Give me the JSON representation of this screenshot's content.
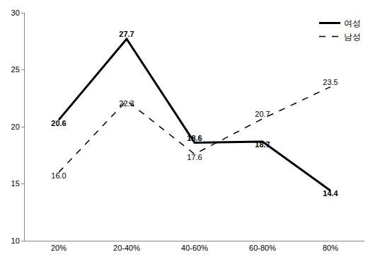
{
  "chart_data": {
    "type": "line",
    "categories": [
      "20%",
      "20-40%",
      "40-60%",
      "60-80%",
      "80%"
    ],
    "series": [
      {
        "name": "여성",
        "color": "#000000",
        "line_style": "solid",
        "values": [
          20.6,
          27.7,
          18.6,
          18.7,
          14.4
        ],
        "value_labels": [
          "20.6",
          "27.7",
          "18.6",
          "18.7",
          "14.4"
        ]
      },
      {
        "name": "남성",
        "color": "#000000",
        "line_style": "dashed",
        "values": [
          16.0,
          22.3,
          17.6,
          20.7,
          23.5
        ],
        "value_labels": [
          "16.0",
          "22.3",
          "17.6",
          "20.7",
          "23.5"
        ]
      }
    ],
    "ylim": [
      10,
      30
    ],
    "yticks": [
      10,
      15,
      20,
      25,
      30
    ],
    "grid": false,
    "legend": "upper right",
    "data_labels": true
  }
}
